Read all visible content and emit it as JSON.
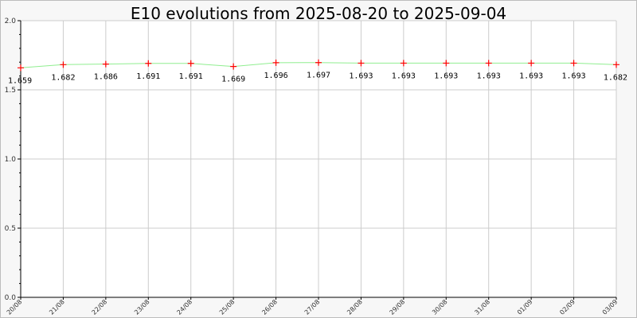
{
  "chart_data": {
    "type": "line",
    "title": "E10 evolutions from 2025-08-20 to 2025-09-04",
    "xlabel": "",
    "ylabel": "",
    "ylim": [
      0,
      2.0
    ],
    "yticks": [
      "0.0",
      "0.5",
      "1.0",
      "1.5",
      "2.0"
    ],
    "categories": [
      "20/08",
      "21/08",
      "22/08",
      "23/08",
      "24/08",
      "25/08",
      "26/08",
      "27/08",
      "28/08",
      "29/08",
      "30/08",
      "31/08",
      "01/09",
      "02/09",
      "03/09"
    ],
    "series": [
      {
        "values": [
          1.659,
          1.682,
          1.686,
          1.691,
          1.691,
          1.669,
          1.696,
          1.697,
          1.693,
          1.693,
          1.693,
          1.693,
          1.693,
          1.693,
          1.682
        ],
        "labels": [
          "1.659",
          "1.682",
          "1.686",
          "1.691",
          "1.691",
          "1.669",
          "1.696",
          "1.697",
          "1.693",
          "1.693",
          "1.693",
          "1.693",
          "1.693",
          "1.693",
          "1.682"
        ],
        "line_color": "#90ee90",
        "marker_color": "#ff0000"
      }
    ],
    "grid": true,
    "legend": "none"
  }
}
